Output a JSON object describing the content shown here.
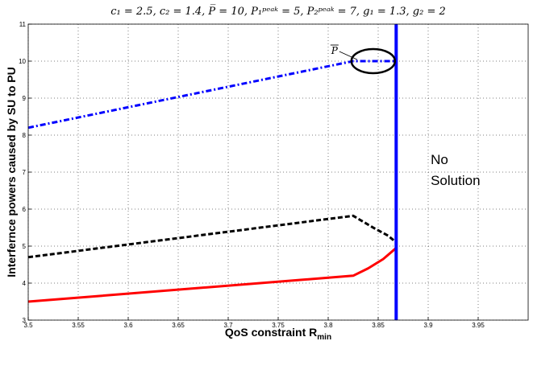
{
  "chart_data": {
    "type": "line",
    "title": "c₁ = 2.5, c₂ = 1.4, P̅ = 10, P₁ᵖᵉᵃᵏ = 5, P₂ᵖᵉᵃᵏ = 7, g₁ = 1.3, g₂ = 2",
    "xlabel": "QoS constraint R",
    "xlabel_sub": "min",
    "ylabel": "Interfernce  powers caused by SU to PU",
    "xlim": [
      3.5,
      4.0
    ],
    "ylim": [
      3,
      11
    ],
    "x_ticks": [
      "3.5",
      "3.55",
      "3.6",
      "3.65",
      "3.7",
      "3.75",
      "3.8",
      "3.85",
      "3.9",
      "3.95"
    ],
    "y_ticks": [
      "3",
      "4",
      "5",
      "6",
      "7",
      "8",
      "9",
      "10",
      "11"
    ],
    "grid": true,
    "series": [
      {
        "color": "#0000ff",
        "style": "dashdot",
        "x": [
          3.5,
          3.825,
          3.83,
          3.845,
          3.868
        ],
        "y": [
          8.2,
          10.0,
          10.0,
          10.0,
          10.0
        ]
      },
      {
        "color": "#000000",
        "style": "dashed",
        "x": [
          3.5,
          3.825,
          3.845,
          3.86,
          3.868
        ],
        "y": [
          4.7,
          5.82,
          5.5,
          5.28,
          5.1
        ]
      },
      {
        "color": "#ff0000",
        "style": "solid",
        "x": [
          3.5,
          3.825,
          3.84,
          3.855,
          3.868
        ],
        "y": [
          3.5,
          4.2,
          4.4,
          4.65,
          4.95
        ]
      }
    ],
    "vline": {
      "x": 3.868,
      "color": "#0000ff"
    },
    "annotations": {
      "no_solution_line1": "No",
      "no_solution_line2": "Solution",
      "pbar_label": "P",
      "pbar_x": 3.845,
      "pbar_y": 10.0
    }
  }
}
